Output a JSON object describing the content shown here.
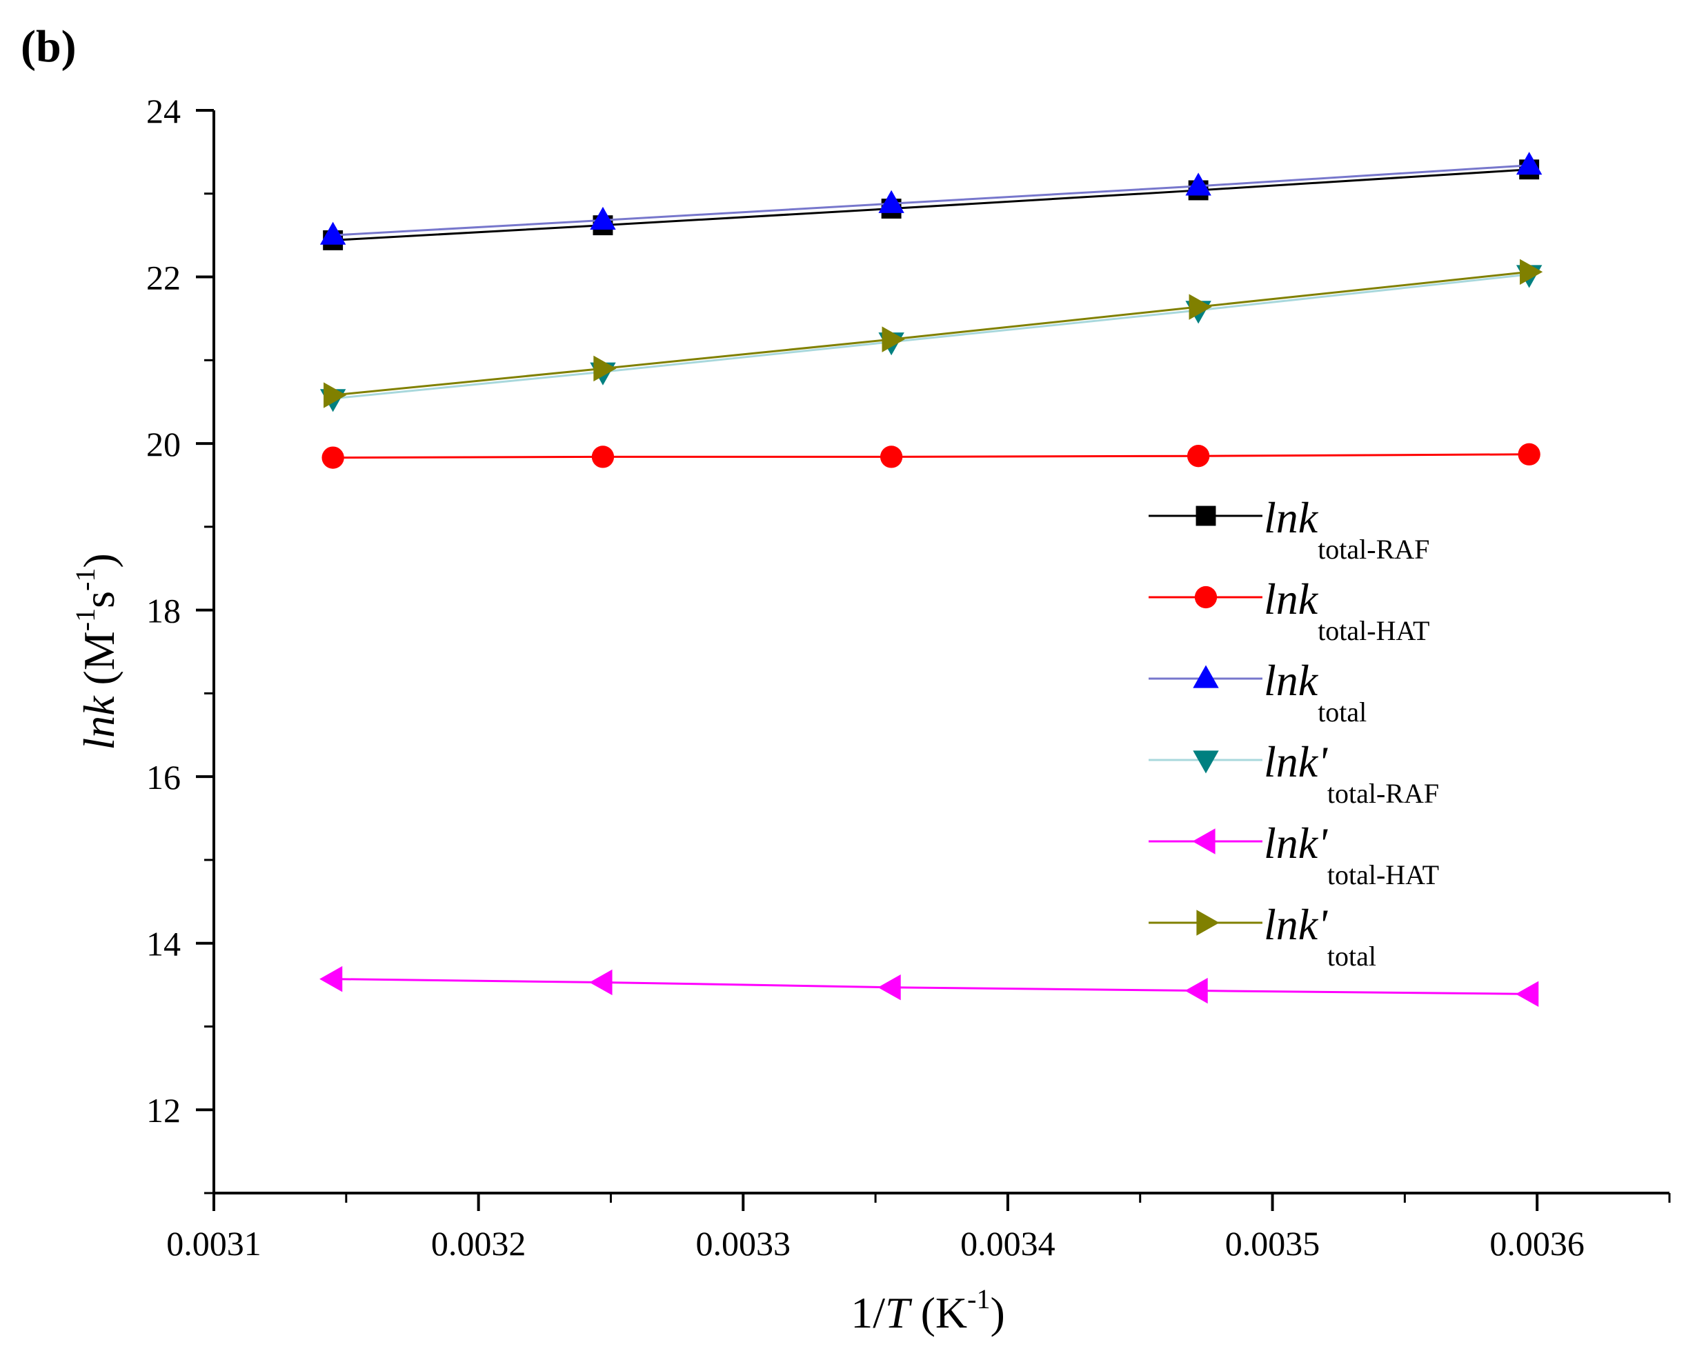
{
  "panel_label": "(b)",
  "chart_data": {
    "type": "line",
    "title": "",
    "xlabel": {
      "prefix": "1/",
      "italic": "T",
      "unit_open": " (K",
      "sup": "-1",
      "unit_close": ")"
    },
    "ylabel": {
      "italic": "lnk",
      "unit_open": " (M",
      "sup1": "-1",
      "mid": "s",
      "sup2": "-1",
      "unit_close": ")"
    },
    "xlim": [
      0.0031,
      0.00365
    ],
    "ylim": [
      11,
      24
    ],
    "xticks": [
      0.0031,
      0.0032,
      0.0033,
      0.0034,
      0.0035,
      0.0036
    ],
    "xtick_labels": [
      "0.0031",
      "0.0032",
      "0.0033",
      "0.0034",
      "0.0035",
      "0.0036"
    ],
    "yticks": [
      12,
      14,
      16,
      18,
      20,
      22,
      24
    ],
    "ytick_labels": [
      "12",
      "14",
      "16",
      "18",
      "20",
      "22",
      "24"
    ],
    "legend_position": "center-right",
    "x": [
      0.003145,
      0.003247,
      0.003356,
      0.003472,
      0.003597
    ],
    "series": [
      {
        "name": "lnk_total-RAF",
        "base": "lnk",
        "sub": "total-RAF",
        "values": [
          22.44,
          22.62,
          22.82,
          23.04,
          23.29
        ],
        "marker": "square",
        "marker_color": "#000000",
        "line_color": "#000000"
      },
      {
        "name": "lnk_total-HAT",
        "base": "lnk",
        "sub": "total-HAT",
        "values": [
          19.83,
          19.84,
          19.84,
          19.85,
          19.87
        ],
        "marker": "circle",
        "marker_color": "#ff0000",
        "line_color": "#ff0000"
      },
      {
        "name": "lnk_total",
        "base": "lnk",
        "sub": "total",
        "values": [
          22.5,
          22.68,
          22.88,
          23.09,
          23.34
        ],
        "marker": "triangle-up",
        "marker_color": "#0000ff",
        "line_color": "#7777cc"
      },
      {
        "name": "lnk'_total-RAF",
        "base": "lnk'",
        "sub": "total-RAF",
        "values": [
          20.54,
          20.86,
          21.22,
          21.6,
          22.03
        ],
        "marker": "triangle-down",
        "marker_color": "#008080",
        "line_color": "#a8d8dc"
      },
      {
        "name": "lnk'_total-HAT",
        "base": "lnk'",
        "sub": "total-HAT",
        "values": [
          13.57,
          13.53,
          13.47,
          13.43,
          13.39
        ],
        "marker": "triangle-left",
        "marker_color": "#ff00ff",
        "line_color": "#ff00ff"
      },
      {
        "name": "lnk'_total",
        "base": "lnk'",
        "sub": "total",
        "values": [
          20.58,
          20.9,
          21.25,
          21.64,
          22.06
        ],
        "marker": "triangle-right",
        "marker_color": "#808000",
        "line_color": "#808000"
      }
    ]
  }
}
